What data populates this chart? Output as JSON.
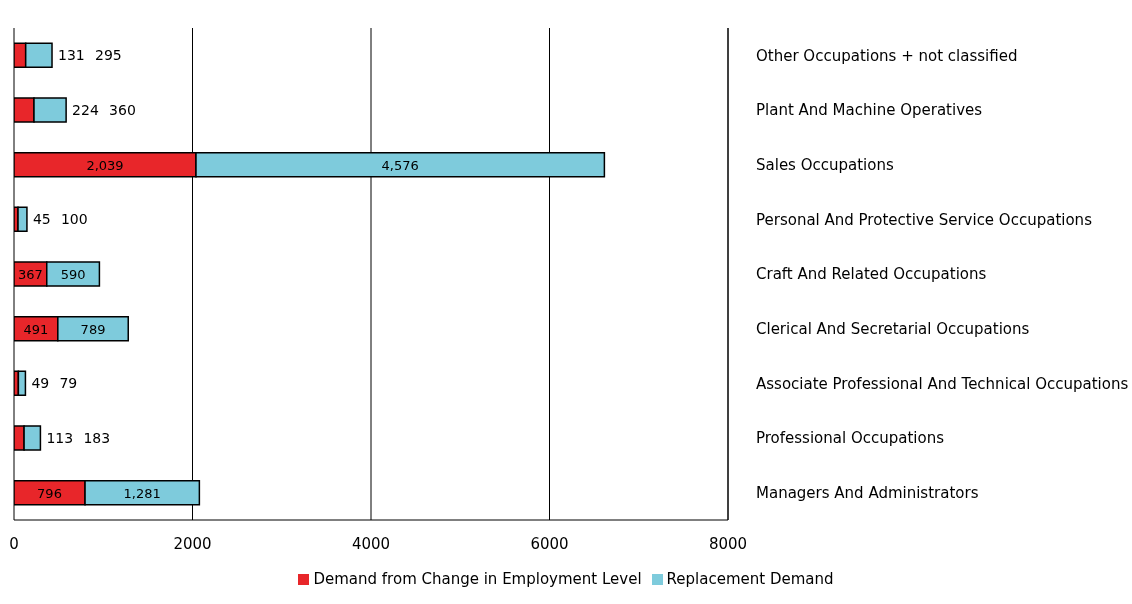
{
  "chart_data": {
    "type": "bar",
    "orientation": "horizontal",
    "stacked": true,
    "categories": [
      "Other Occupations  + not classified",
      "Plant And Machine Operatives",
      "Sales Occupations",
      "Personal And Protective  Service  Occupations",
      "Craft And Related  Occupations",
      "Clerical And Secretarial  Occupations",
      "Associate  Professional  And Technical  Occupations",
      "Professional  Occupations",
      "Managers And Administrators"
    ],
    "series": [
      {
        "name": "Demand from Change in Employment Level",
        "color": "#e8262a",
        "values": [
          131,
          224,
          2039,
          45,
          367,
          491,
          49,
          113,
          796
        ],
        "value_labels": [
          "131",
          "224",
          "2,039",
          "45",
          "367",
          "491",
          "49",
          "113",
          "796"
        ]
      },
      {
        "name": "Replacement Demand",
        "color": "#7ecbdc",
        "values": [
          295,
          360,
          4576,
          100,
          590,
          789,
          79,
          183,
          1281
        ],
        "value_labels": [
          "295",
          "360",
          "4,576",
          "100",
          "590",
          "789",
          "79",
          "183",
          "1,281"
        ]
      }
    ],
    "xlim": [
      0,
      8000
    ],
    "xticks": [
      0,
      2000,
      4000,
      6000,
      8000
    ],
    "grid": "x",
    "legend": "bottom"
  }
}
